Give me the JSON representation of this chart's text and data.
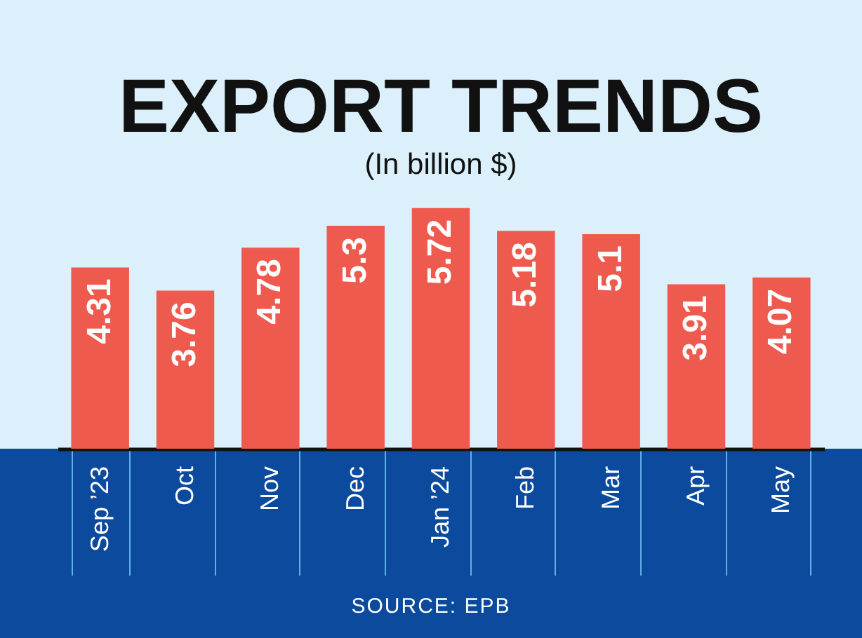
{
  "chart_data": {
    "type": "bar",
    "title": "EXPORT TRENDS",
    "subtitle": "(In billion $)",
    "categories": [
      "Sep ’23",
      "Oct",
      "Nov",
      "Dec",
      "Jan ’24",
      "Feb",
      "Mar",
      "Apr",
      "May"
    ],
    "values": [
      4.31,
      3.76,
      4.78,
      5.3,
      5.72,
      5.18,
      5.1,
      3.91,
      4.07
    ],
    "color": "#ef5a4e",
    "data_labels": true,
    "tick_labels": "x",
    "annotations": [
      "SOURCE: EPB"
    ]
  }
}
